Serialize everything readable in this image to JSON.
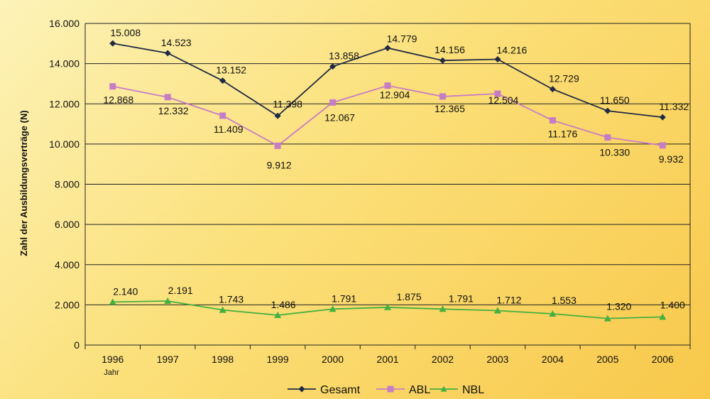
{
  "chart_data": {
    "type": "line",
    "title": "",
    "ylabel": "Zahl der Ausbildungsverträge (N)",
    "xlabel_sub": "Jahr",
    "categories": [
      "1996",
      "1997",
      "1998",
      "1999",
      "2000",
      "2001",
      "2002",
      "2003",
      "2004",
      "2005",
      "2006"
    ],
    "ylim": [
      0,
      16000
    ],
    "yticks": [
      0,
      2000,
      4000,
      6000,
      8000,
      10000,
      12000,
      14000,
      16000
    ],
    "ytick_labels": [
      "0",
      "2.000",
      "4.000",
      "6.000",
      "8.000",
      "10.000",
      "12.000",
      "14.000",
      "16.000"
    ],
    "grid": true,
    "legend_position": "bottom",
    "series": [
      {
        "name": "Gesamt",
        "color": "#1f2a44",
        "marker": "diamond",
        "values": [
          15008,
          14523,
          13152,
          11398,
          13858,
          14779,
          14156,
          14216,
          12729,
          11650,
          11332
        ],
        "labels": [
          "15.008",
          "14.523",
          "13.152",
          "11.398",
          "13.858",
          "14.779",
          "14.156",
          "14.216",
          "12.729",
          "11.650",
          "11.332"
        ]
      },
      {
        "name": "ABL",
        "color": "#c77dc4",
        "marker": "square",
        "values": [
          12868,
          12332,
          11409,
          9912,
          12067,
          12904,
          12365,
          12504,
          11176,
          10330,
          9932
        ],
        "labels": [
          "12.868",
          "12.332",
          "11.409",
          "9.912",
          "12.067",
          "12.904",
          "12.365",
          "12.504",
          "11.176",
          "10.330",
          "9.932"
        ]
      },
      {
        "name": "NBL",
        "color": "#44b040",
        "marker": "triangle",
        "values": [
          2140,
          2191,
          1743,
          1486,
          1791,
          1875,
          1791,
          1712,
          1553,
          1320,
          1400
        ],
        "labels": [
          "2.140",
          "2.191",
          "1.743",
          "1.486",
          "1.791",
          "1.875",
          "1.791",
          "1.712",
          "1.553",
          "1.320",
          "1.400"
        ]
      }
    ]
  }
}
